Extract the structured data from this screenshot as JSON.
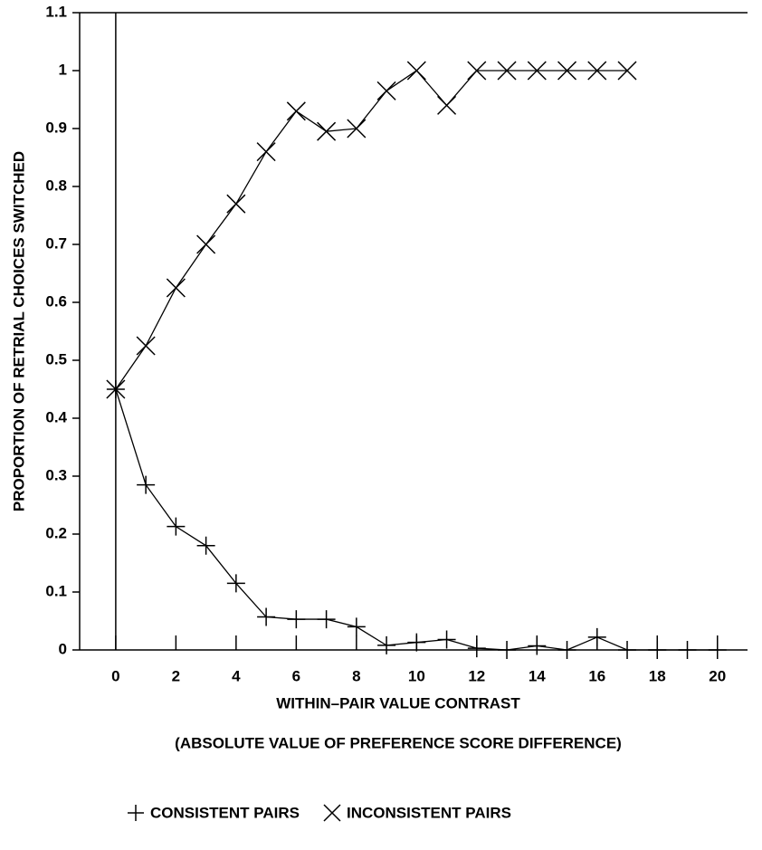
{
  "chart_data": {
    "type": "line",
    "x_label": [
      "WITHIN–PAIR VALUE CONTRAST",
      "(ABSOLUTE VALUE OF PREFERENCE SCORE DIFFERENCE)"
    ],
    "y_label": "PROPORTION OF RETRIAL CHOICES SWITCHED",
    "x": [
      0,
      1,
      2,
      3,
      4,
      5,
      6,
      7,
      8,
      9,
      10,
      11,
      12,
      13,
      14,
      15,
      16,
      17,
      18,
      19,
      20
    ],
    "series": [
      {
        "name": "CONSISTENT PAIRS",
        "marker": "plus",
        "color": "#000000",
        "values": [
          0.45,
          0.285,
          0.213,
          0.18,
          0.115,
          0.057,
          0.053,
          0.053,
          0.04,
          0.008,
          0.013,
          0.018,
          0.003,
          0,
          0.007,
          0,
          0.022,
          0,
          0,
          0,
          0
        ]
      },
      {
        "name": "INCONSISTENT PAIRS",
        "marker": "cross",
        "color": "#000000",
        "values": [
          0.45,
          0.525,
          0.625,
          0.7,
          0.77,
          0.86,
          0.93,
          0.895,
          0.9,
          0.965,
          1,
          0.94,
          1,
          1,
          1,
          1,
          1,
          1,
          null,
          null,
          null
        ]
      }
    ],
    "xlim": [
      -1.2,
      21
    ],
    "ylim": [
      0,
      1.1
    ],
    "xticks": [
      0,
      2,
      4,
      6,
      8,
      10,
      12,
      14,
      16,
      18,
      20
    ],
    "yticks": [
      0,
      0.1,
      0.2,
      0.3,
      0.4,
      0.5,
      0.6,
      0.7,
      0.8,
      0.9,
      1,
      1.1
    ]
  }
}
